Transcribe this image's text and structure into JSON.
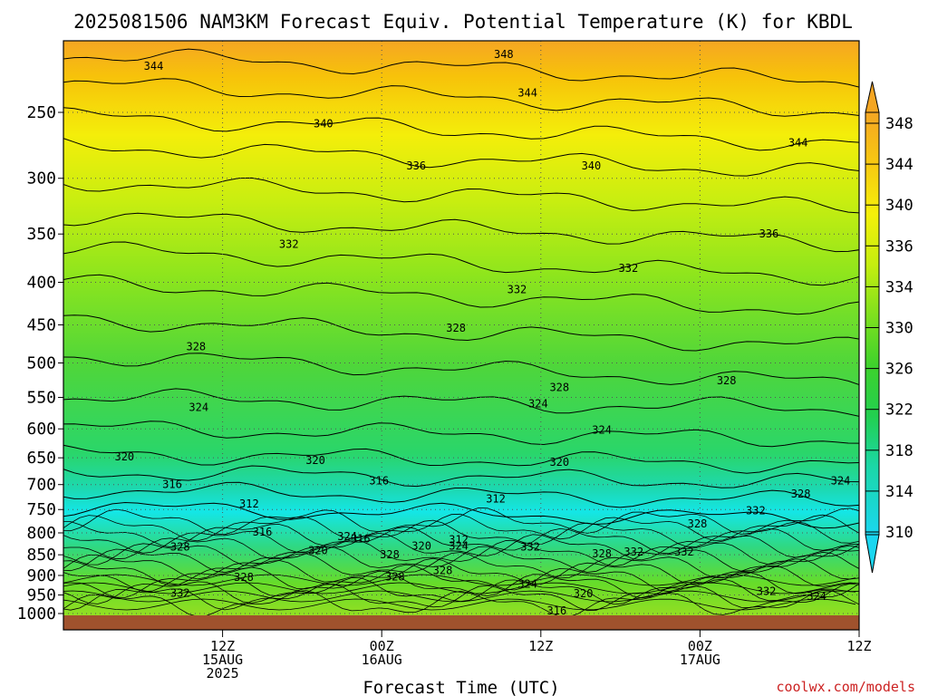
{
  "chart_data": {
    "type": "heatmap",
    "title": "2025081506 NAM3KM Forecast Equiv. Potential Temperature (K) for KBDL",
    "xlabel": "Forecast Time (UTC)",
    "ylabel": "",
    "credit": "coolwx.com/models",
    "y_axis": {
      "scale": "log",
      "range": [
        1000,
        205
      ],
      "ticks": [
        250,
        300,
        350,
        400,
        450,
        500,
        550,
        600,
        650,
        700,
        750,
        800,
        850,
        900,
        950,
        1000
      ]
    },
    "x_axis": {
      "range": [
        -2,
        28
      ],
      "ticks": [
        {
          "pos": 4,
          "labels": [
            "12Z",
            "15AUG",
            "2025"
          ]
        },
        {
          "pos": 10,
          "labels": [
            "00Z",
            "16AUG"
          ]
        },
        {
          "pos": 16,
          "labels": [
            "12Z"
          ]
        },
        {
          "pos": 22,
          "labels": [
            "00Z",
            "17AUG"
          ]
        },
        {
          "pos": 28,
          "labels": [
            "12Z"
          ]
        }
      ]
    },
    "grid": true,
    "colorbar": {
      "placement": "right",
      "levels": [
        348,
        344,
        340,
        336,
        334,
        330,
        326,
        322,
        318,
        314,
        310
      ],
      "min": 310,
      "max": 350
    },
    "contour_labels": [
      {
        "text": "348",
        "x": 14.6,
        "p": 213
      },
      {
        "text": "344",
        "x": 1.4,
        "p": 220
      },
      {
        "text": "344",
        "x": 15.5,
        "p": 237
      },
      {
        "text": "340",
        "x": 7.8,
        "p": 258
      },
      {
        "text": "344",
        "x": 25.7,
        "p": 272
      },
      {
        "text": "336",
        "x": 11.3,
        "p": 290
      },
      {
        "text": "340",
        "x": 17.9,
        "p": 290
      },
      {
        "text": "336",
        "x": 24.6,
        "p": 350
      },
      {
        "text": "332",
        "x": 6.5,
        "p": 360
      },
      {
        "text": "332",
        "x": 19.3,
        "p": 385
      },
      {
        "text": "332",
        "x": 15.1,
        "p": 408
      },
      {
        "text": "328",
        "x": 12.8,
        "p": 454
      },
      {
        "text": "328",
        "x": 3.0,
        "p": 478
      },
      {
        "text": "328",
        "x": 23.0,
        "p": 525
      },
      {
        "text": "328",
        "x": 16.7,
        "p": 535
      },
      {
        "text": "324",
        "x": 15.9,
        "p": 560
      },
      {
        "text": "324",
        "x": 3.1,
        "p": 565
      },
      {
        "text": "324",
        "x": 18.3,
        "p": 602
      },
      {
        "text": "320",
        "x": 0.3,
        "p": 648
      },
      {
        "text": "320",
        "x": 7.5,
        "p": 655
      },
      {
        "text": "320",
        "x": 16.7,
        "p": 658
      },
      {
        "text": "324",
        "x": 28.9,
        "p": 642
      },
      {
        "text": "316",
        "x": 2.1,
        "p": 700
      },
      {
        "text": "316",
        "x": 9.9,
        "p": 693
      },
      {
        "text": "324",
        "x": 27.3,
        "p": 693
      },
      {
        "text": "312",
        "x": 5.0,
        "p": 738
      },
      {
        "text": "312",
        "x": 14.3,
        "p": 728
      },
      {
        "text": "328",
        "x": 25.8,
        "p": 718
      },
      {
        "text": "332",
        "x": 24.1,
        "p": 752
      },
      {
        "text": "328",
        "x": 21.9,
        "p": 780
      },
      {
        "text": "316",
        "x": 5.5,
        "p": 798
      },
      {
        "text": "324",
        "x": 8.7,
        "p": 808
      },
      {
        "text": "316",
        "x": 9.2,
        "p": 813
      },
      {
        "text": "312",
        "x": 12.9,
        "p": 815
      },
      {
        "text": "328",
        "x": 2.4,
        "p": 832
      },
      {
        "text": "320",
        "x": 11.5,
        "p": 830
      },
      {
        "text": "324",
        "x": 12.9,
        "p": 830
      },
      {
        "text": "332",
        "x": 15.6,
        "p": 832
      },
      {
        "text": "320",
        "x": 7.6,
        "p": 840
      },
      {
        "text": "328",
        "x": 10.3,
        "p": 850
      },
      {
        "text": "332",
        "x": 19.5,
        "p": 843
      },
      {
        "text": "328",
        "x": 18.3,
        "p": 847
      },
      {
        "text": "332",
        "x": 21.4,
        "p": 843
      },
      {
        "text": "328",
        "x": 12.3,
        "p": 888
      },
      {
        "text": "328",
        "x": 4.8,
        "p": 905
      },
      {
        "text": "328",
        "x": 10.5,
        "p": 903
      },
      {
        "text": "324",
        "x": 15.5,
        "p": 922
      },
      {
        "text": "332",
        "x": 2.4,
        "p": 945
      },
      {
        "text": "320",
        "x": 17.6,
        "p": 946
      },
      {
        "text": "332",
        "x": 24.5,
        "p": 940
      },
      {
        "text": "324",
        "x": 26.4,
        "p": 953
      },
      {
        "text": "336",
        "x": 28.5,
        "p": 948
      },
      {
        "text": "316",
        "x": 16.6,
        "p": 993
      }
    ]
  }
}
